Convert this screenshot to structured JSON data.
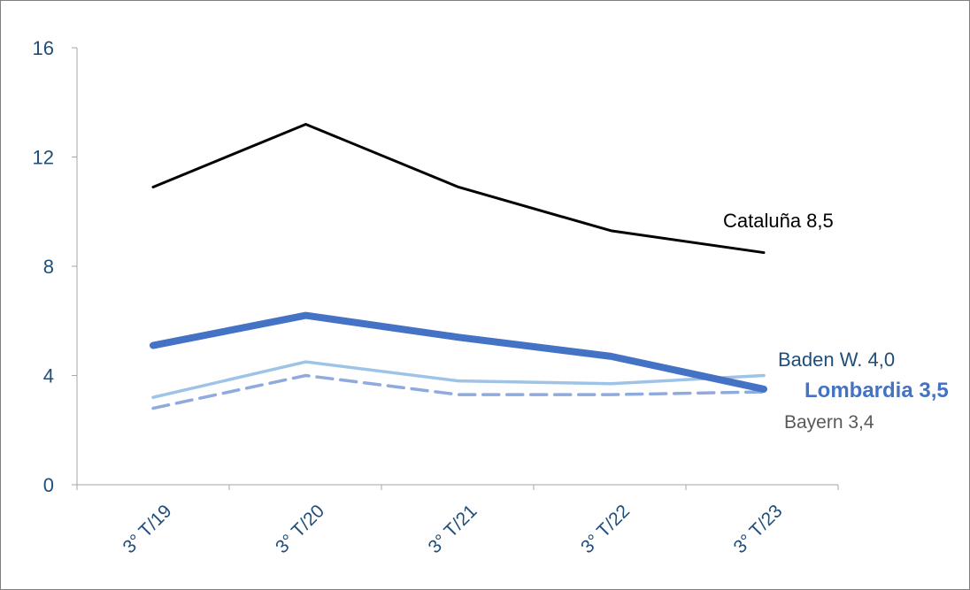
{
  "chart_data": {
    "type": "line",
    "title": "",
    "xlabel": "",
    "ylabel": "",
    "categories": [
      "3° T/19",
      "3° T/20",
      "3° T/21",
      "3° T/22",
      "3° T/23"
    ],
    "ylim": [
      0,
      16
    ],
    "yticks": [
      "0",
      "4",
      "8",
      "12",
      "16"
    ],
    "grid": false,
    "legend": "none (series labelled at line ends)",
    "series": [
      {
        "name": "Cataluña",
        "values": [
          10.9,
          13.2,
          10.9,
          9.3,
          8.5
        ],
        "end_label": "Cataluña 8,5",
        "color": "#000000",
        "style": "solid-thin"
      },
      {
        "name": "Lombardia",
        "values": [
          5.1,
          6.2,
          5.4,
          4.7,
          3.5
        ],
        "end_label": "Lombardia 3,5",
        "color": "#4472c4",
        "style": "solid-thick"
      },
      {
        "name": "Baden W.",
        "values": [
          3.2,
          4.5,
          3.8,
          3.7,
          4.0
        ],
        "end_label": "Baden W. 4,0",
        "color": "#9dc3e6",
        "style": "solid-medium"
      },
      {
        "name": "Bayern",
        "values": [
          2.8,
          4.0,
          3.3,
          3.3,
          3.4
        ],
        "end_label": "Bayern 3,4",
        "color": "#8faadc",
        "style": "dashed"
      }
    ],
    "colors": {
      "axis": "#a6a6a6",
      "tick_text": "#1f4e79",
      "frame": "#7f7f7f"
    }
  }
}
